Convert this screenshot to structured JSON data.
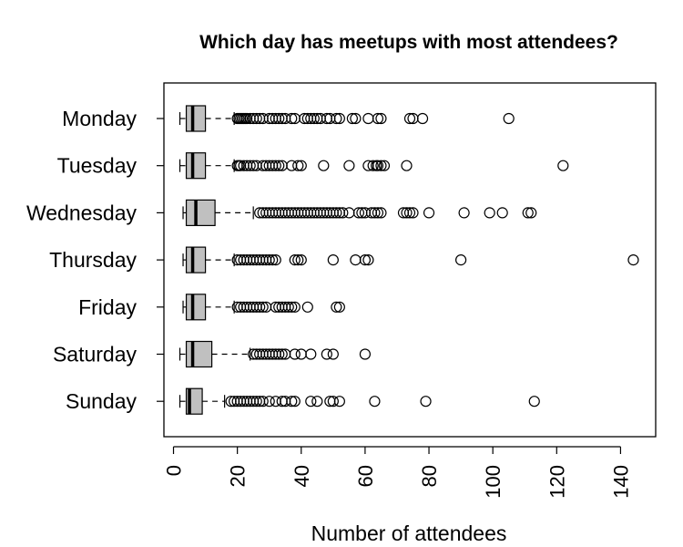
{
  "chart_data": {
    "type": "boxplot",
    "orientation": "horizontal",
    "title": "Which day has meetups with most attendees?",
    "xlabel": "Number of attendees",
    "ylabel": "",
    "xlim": [
      -3,
      151
    ],
    "x_ticks": [
      0,
      20,
      40,
      60,
      80,
      100,
      120,
      140
    ],
    "x_tick_labels": [
      "0",
      "20",
      "40",
      "60",
      "80",
      "100",
      "120",
      "140"
    ],
    "box_color": "#c0c0c0",
    "categories": [
      "Monday",
      "Tuesday",
      "Wednesday",
      "Thursday",
      "Friday",
      "Saturday",
      "Sunday"
    ],
    "boxes": [
      {
        "name": "Monday",
        "whisker_low": 2,
        "q1": 4,
        "median": 6,
        "q3": 10,
        "whisker_high": 19,
        "outliers": [
          20,
          20.5,
          21,
          21.5,
          22,
          22.5,
          23,
          24,
          25,
          26,
          27,
          28,
          30,
          31,
          32,
          33,
          34,
          35,
          37,
          38,
          41,
          42,
          43,
          44,
          45,
          46,
          48,
          49,
          51,
          52,
          56,
          57,
          61,
          64,
          65,
          74,
          75,
          78,
          105
        ]
      },
      {
        "name": "Tuesday",
        "whisker_low": 2,
        "q1": 4,
        "median": 6,
        "q3": 10,
        "whisker_high": 19,
        "outliers": [
          20,
          20.5,
          21,
          22,
          23,
          24,
          25,
          26,
          28,
          29,
          30,
          31,
          32,
          33,
          34,
          37,
          39,
          40,
          47,
          55,
          61,
          62.5,
          63.5,
          64,
          65,
          66,
          73,
          122
        ]
      },
      {
        "name": "Wednesday",
        "whisker_low": 3,
        "q1": 4,
        "median": 7,
        "q3": 13,
        "whisker_high": 25,
        "outliers": [
          27,
          28,
          29,
          30,
          31,
          32,
          33,
          34,
          35,
          36,
          37,
          38,
          39,
          40,
          41,
          42,
          43,
          44,
          45,
          46,
          47,
          48,
          49,
          50,
          51,
          52,
          53,
          55,
          58,
          59,
          60,
          62,
          63,
          64,
          65,
          72,
          73,
          74,
          75,
          80,
          91,
          99,
          103,
          111,
          112
        ]
      },
      {
        "name": "Thursday",
        "whisker_low": 3,
        "q1": 4,
        "median": 6,
        "q3": 10,
        "whisker_high": 19,
        "outliers": [
          20,
          21,
          22,
          23,
          24,
          25,
          26,
          27,
          28,
          29,
          30,
          31,
          32,
          38,
          39,
          40,
          50,
          57,
          60,
          61,
          90,
          144
        ]
      },
      {
        "name": "Friday",
        "whisker_low": 3,
        "q1": 4,
        "median": 6,
        "q3": 10,
        "whisker_high": 19,
        "outliers": [
          20,
          21,
          22,
          23,
          24,
          25,
          26,
          27,
          28,
          29,
          32,
          33,
          34,
          35,
          36,
          37,
          38,
          42,
          51,
          52
        ]
      },
      {
        "name": "Saturday",
        "whisker_low": 2,
        "q1": 4,
        "median": 6,
        "q3": 12,
        "whisker_high": 24,
        "outliers": [
          25,
          26,
          27,
          28,
          29,
          30,
          31,
          32,
          33,
          34,
          35,
          38,
          40,
          43,
          48,
          50,
          60
        ]
      },
      {
        "name": "Sunday",
        "whisker_low": 2,
        "q1": 4,
        "median": 5,
        "q3": 9,
        "whisker_high": 16,
        "outliers": [
          18,
          19,
          20,
          21,
          22,
          23,
          24,
          25,
          26,
          27,
          28,
          30,
          32,
          34,
          35,
          37,
          38,
          43,
          45,
          49,
          50,
          52,
          63,
          79,
          113
        ]
      }
    ]
  }
}
